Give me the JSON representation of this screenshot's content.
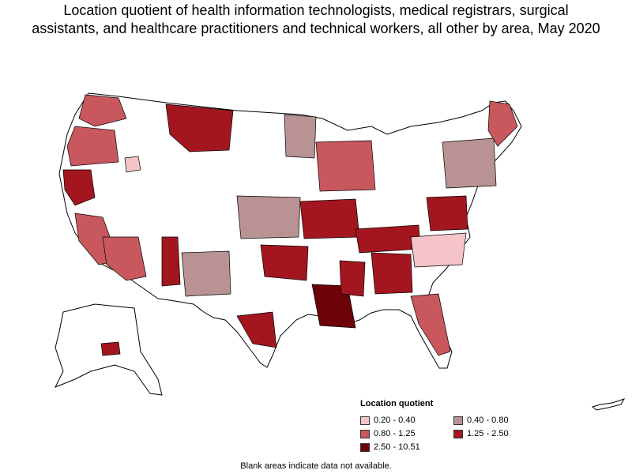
{
  "title": {
    "line1": "Location quotient of health information technologists, medical registrars, surgical",
    "line2": "assistants, and healthcare practitioners and technical workers, all other by area, May 2020"
  },
  "legend": {
    "title": "Location quotient",
    "items": [
      {
        "label": "0.20 - 0.40",
        "color": "#f4c4c8"
      },
      {
        "label": "0.40 - 0.80",
        "color": "#b99294"
      },
      {
        "label": "0.80 - 1.25",
        "color": "#c9575e"
      },
      {
        "label": "1.25 - 2.50",
        "color": "#a3161f"
      },
      {
        "label": "2.50 - 10.51",
        "color": "#6d0309"
      }
    ]
  },
  "footnote": "Blank areas indicate data not available."
}
